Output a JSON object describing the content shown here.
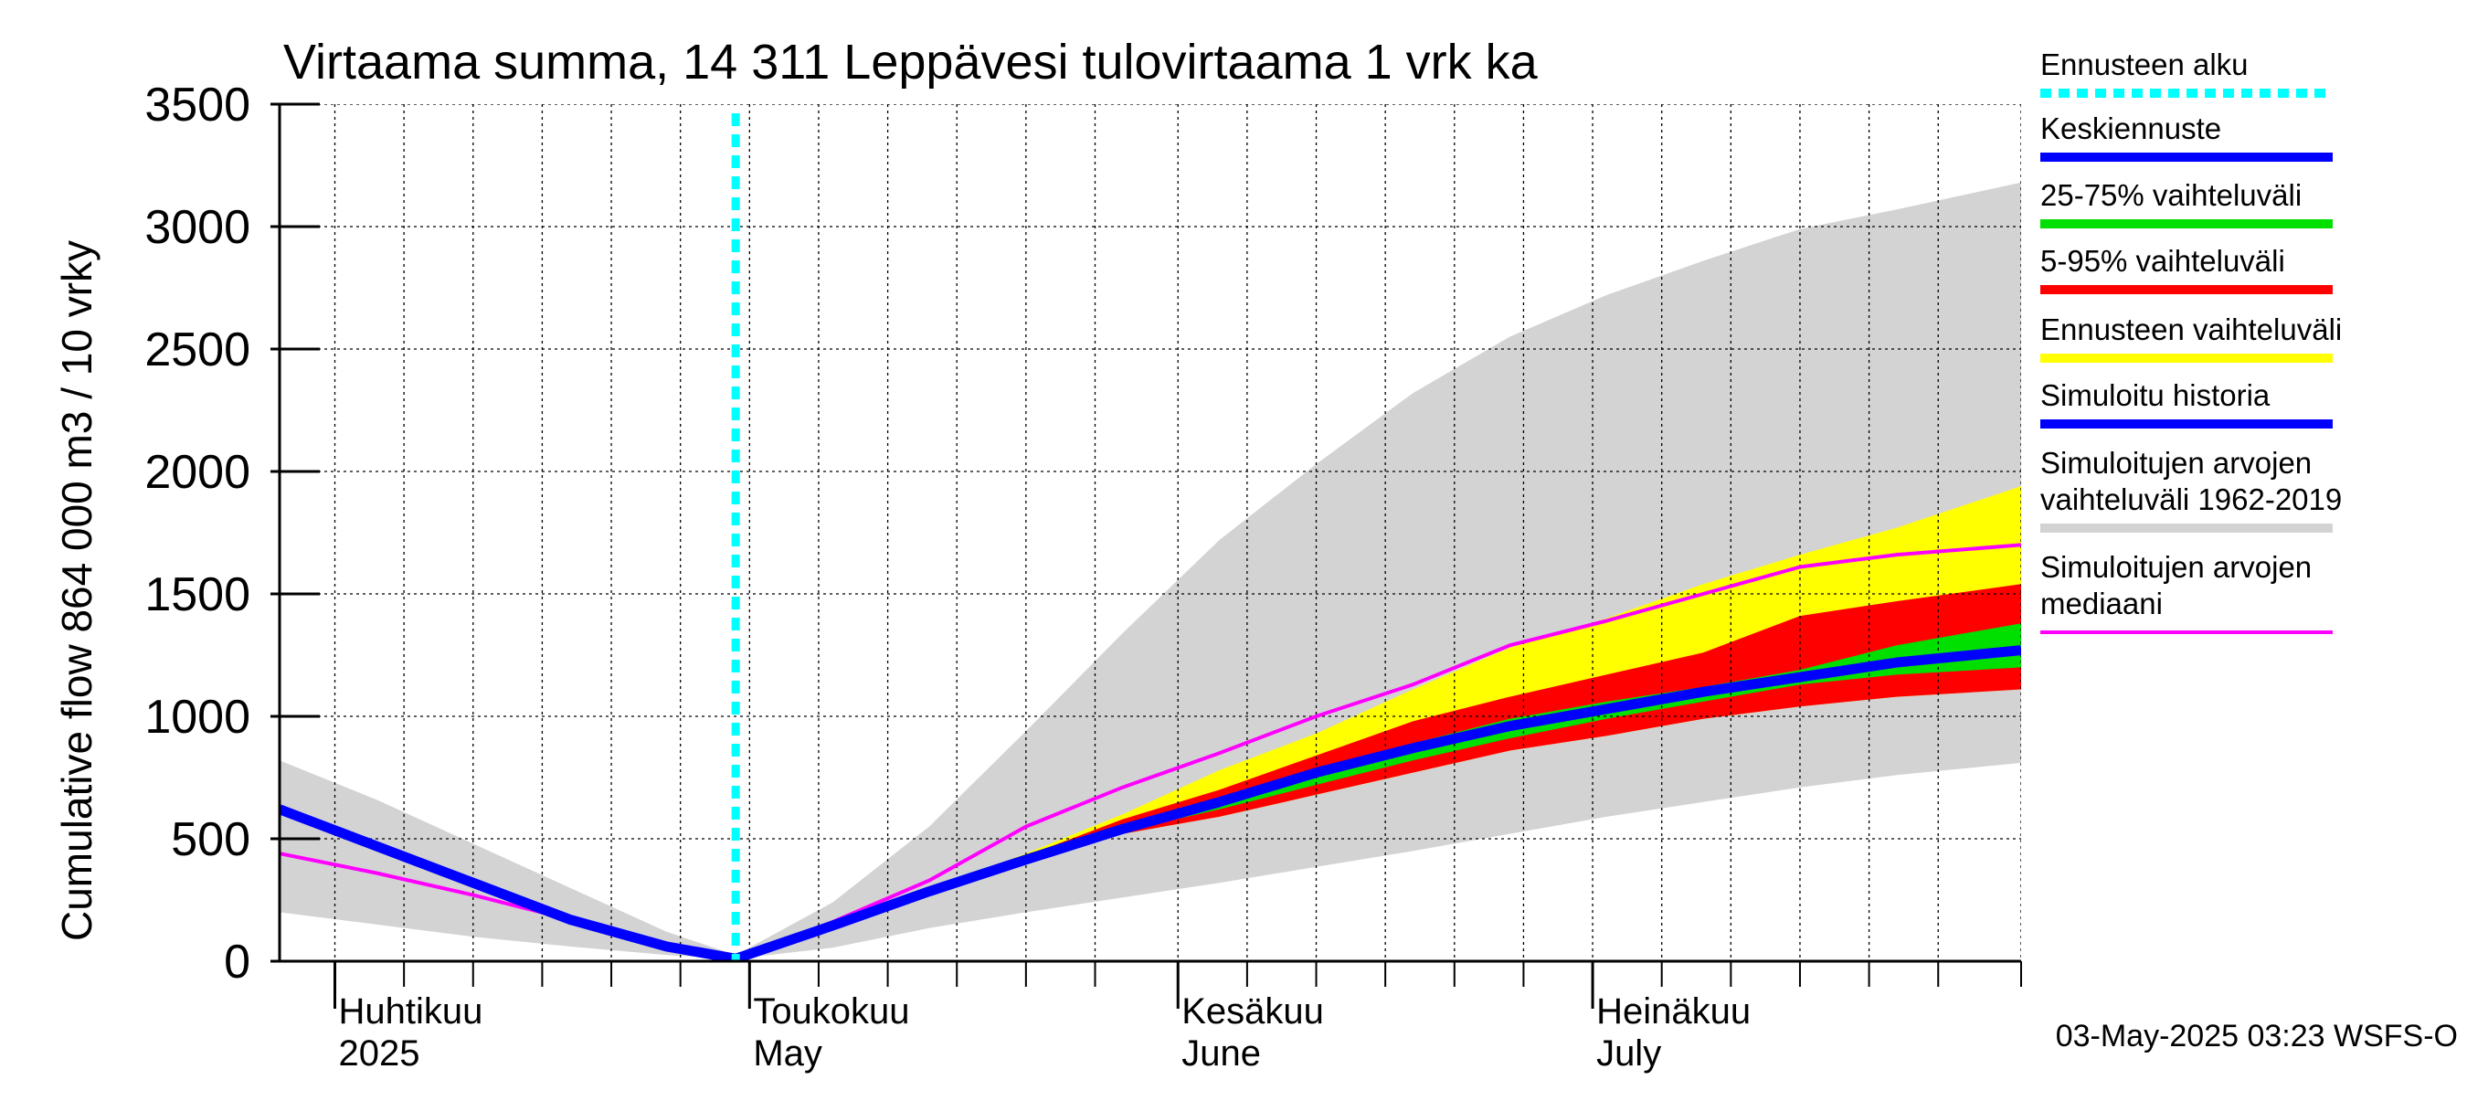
{
  "chart_data": {
    "type": "area",
    "title": "Virtaama summa, 14 311 Leppävesi tulovirtaama 1 vrk ka",
    "ylabel": "Cumulative flow    864 000 m3 / 10 vrky",
    "ylim": [
      0,
      3500
    ],
    "yticks": [
      0,
      500,
      1000,
      1500,
      2000,
      2500,
      3000,
      3500
    ],
    "xlim": [
      "2025-03-28",
      "2025-08-01"
    ],
    "grid": true,
    "legend_position": "right",
    "month_labels": [
      {
        "date": "2025-04-01",
        "line1": "Huhtikuu",
        "line2": "2025"
      },
      {
        "date": "2025-05-01",
        "line1": "Toukokuu",
        "line2": "May"
      },
      {
        "date": "2025-06-01",
        "line1": "Kesäkuu",
        "line2": "June"
      },
      {
        "date": "2025-07-01",
        "line1": "Heinäkuu",
        "line2": "July"
      }
    ],
    "forecast_start": "2025-04-30",
    "footer": "03-May-2025 03:23 WSFS-O",
    "x": [
      "2025-03-28",
      "2025-04-04",
      "2025-04-11",
      "2025-04-18",
      "2025-04-25",
      "2025-04-30",
      "2025-05-07",
      "2025-05-14",
      "2025-05-21",
      "2025-05-28",
      "2025-06-04",
      "2025-06-11",
      "2025-06-18",
      "2025-06-25",
      "2025-07-02",
      "2025-07-09",
      "2025-07-16",
      "2025-07-23",
      "2025-08-01"
    ],
    "series": [
      {
        "name": "Simuloitujen arvojen vaihteluväli 1962-2019",
        "kind": "band",
        "color": "#d3d3d3",
        "lower": [
          200,
          150,
          100,
          60,
          25,
          10,
          55,
          135,
          200,
          260,
          320,
          385,
          450,
          520,
          590,
          650,
          710,
          760,
          810
        ],
        "upper": [
          820,
          660,
          480,
          300,
          120,
          25,
          240,
          550,
          940,
          1340,
          1720,
          2030,
          2320,
          2550,
          2720,
          2860,
          2990,
          3070,
          3180
        ]
      },
      {
        "name": "Ennusteen vaihteluväli",
        "kind": "band",
        "color": "#ffff00",
        "lower": [
          null,
          null,
          null,
          null,
          null,
          10,
          140,
          280,
          400,
          520,
          590,
          680,
          770,
          860,
          920,
          990,
          1040,
          1080,
          1110
        ],
        "upper": [
          null,
          null,
          null,
          null,
          null,
          10,
          145,
          290,
          440,
          600,
          780,
          930,
          1110,
          1280,
          1400,
          1540,
          1660,
          1770,
          1940
        ]
      },
      {
        "name": "5-95% vaihteluväli",
        "kind": "band",
        "color": "#ff0000",
        "lower": [
          null,
          null,
          null,
          null,
          null,
          10,
          140,
          280,
          400,
          520,
          590,
          680,
          770,
          860,
          920,
          990,
          1040,
          1080,
          1110
        ],
        "upper": [
          null,
          null,
          null,
          null,
          null,
          10,
          145,
          290,
          430,
          580,
          700,
          840,
          980,
          1080,
          1170,
          1260,
          1410,
          1470,
          1540
        ]
      },
      {
        "name": "25-75% vaihteluväli",
        "kind": "band",
        "color": "#00e000",
        "lower": [
          null,
          null,
          null,
          null,
          null,
          10,
          140,
          280,
          405,
          530,
          620,
          720,
          820,
          910,
          990,
          1060,
          1130,
          1170,
          1200
        ],
        "upper": [
          null,
          null,
          null,
          null,
          null,
          10,
          145,
          285,
          420,
          555,
          670,
          790,
          890,
          990,
          1060,
          1120,
          1190,
          1290,
          1380
        ]
      },
      {
        "name": "Simuloitujen arvojen mediaani",
        "kind": "line",
        "color": "#ff00ff",
        "values": [
          440,
          360,
          270,
          170,
          70,
          10,
          160,
          330,
          550,
          710,
          850,
          1000,
          1130,
          1290,
          1390,
          1500,
          1610,
          1660,
          1700
        ]
      },
      {
        "name": "Simuloitu historia",
        "kind": "line",
        "color": "#0000ff",
        "values": [
          620,
          470,
          320,
          170,
          60,
          10,
          null,
          null,
          null,
          null,
          null,
          null,
          null,
          null,
          null,
          null,
          null,
          null,
          null
        ]
      },
      {
        "name": "Keskiennuste",
        "kind": "line",
        "color": "#0000ff",
        "values": [
          null,
          null,
          null,
          null,
          null,
          10,
          145,
          285,
          415,
          540,
          650,
          770,
          870,
          960,
          1030,
          1100,
          1160,
          1220,
          1270
        ]
      }
    ],
    "legend": [
      {
        "label": "Ennusteen alku",
        "color": "#00ffff",
        "style": "dashed"
      },
      {
        "label": "Keskiennuste",
        "color": "#0000ff",
        "style": "solid"
      },
      {
        "label": "25-75% vaihteluväli",
        "color": "#00e000",
        "style": "solid"
      },
      {
        "label": "5-95% vaihteluväli",
        "color": "#ff0000",
        "style": "solid"
      },
      {
        "label": "Ennusteen vaihteluväli",
        "color": "#ffff00",
        "style": "solid"
      },
      {
        "label": "Simuloitu historia",
        "color": "#0000ff",
        "style": "solid"
      },
      {
        "label": "Simuloitujen arvojen vaihteluväli 1962-2019",
        "color": "#d3d3d3",
        "style": "solid"
      },
      {
        "label": "Simuloitujen arvojen mediaani",
        "color": "#ff00ff",
        "style": "solid"
      }
    ]
  }
}
